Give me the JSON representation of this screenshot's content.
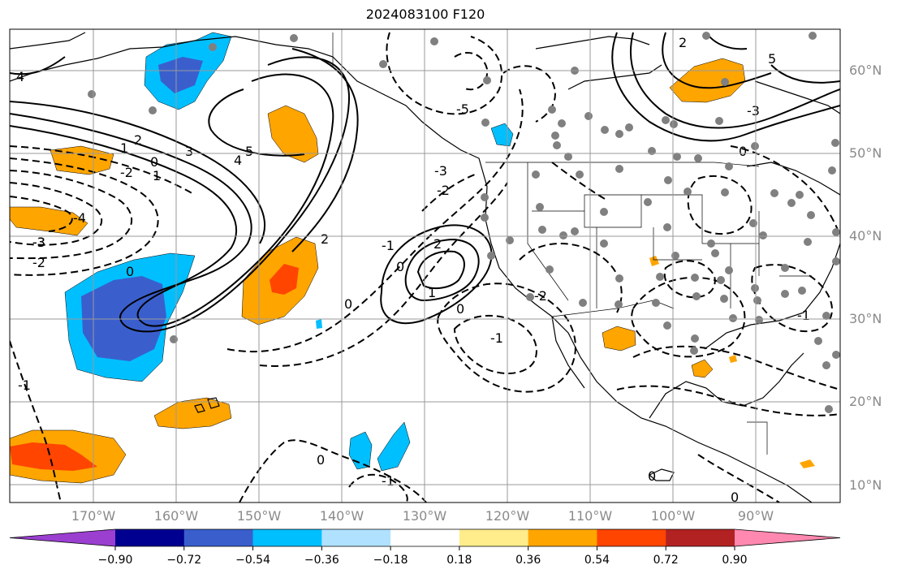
{
  "title": "2024083100 F120",
  "latitude_labels": [
    {
      "text": "60°N"
    },
    {
      "text": "50°N"
    },
    {
      "text": "40°N"
    },
    {
      "text": "30°N"
    },
    {
      "text": "20°N"
    },
    {
      "text": "10°N"
    }
  ],
  "longitude_labels": [
    {
      "text": "170°W"
    },
    {
      "text": "160°W"
    },
    {
      "text": "150°W"
    },
    {
      "text": "140°W"
    },
    {
      "text": "130°W"
    },
    {
      "text": "120°W"
    },
    {
      "text": "110°W"
    },
    {
      "text": "100°W"
    },
    {
      "text": "90°W"
    }
  ],
  "colorbar": {
    "ticks": [
      "−0.90",
      "−0.72",
      "−0.54",
      "−0.36",
      "−0.18",
      "0.18",
      "0.36",
      "0.54",
      "0.72",
      "0.90"
    ],
    "colors": [
      "#9a3fd0",
      "#000090",
      "#3a5fcd",
      "#00bfff",
      "#b0e2ff",
      "#ffffff",
      "#ffec8b",
      "#ffa500",
      "#ff4500",
      "#b22222",
      "#ff88b0"
    ]
  },
  "contour_labels": [
    "4",
    "5",
    "4",
    "3",
    "2",
    "1",
    "0",
    "2",
    "1",
    "-2",
    "-3",
    "-4",
    "-3",
    "-2",
    "0",
    "2",
    "1",
    "0",
    "-1",
    "-2",
    "-3",
    "-5",
    "0",
    "-1",
    "-2",
    "0",
    "-1",
    "0",
    "0",
    "-1",
    "2",
    "5",
    "-3",
    "0",
    "-1",
    "0"
  ],
  "colors": {
    "grid": "#9a9a9a",
    "coast": "#000000",
    "station": "#808080",
    "blue_dark": "#3a5fcd",
    "blue": "#00bfff",
    "orange": "#ffa500",
    "red": "#ff4500"
  }
}
